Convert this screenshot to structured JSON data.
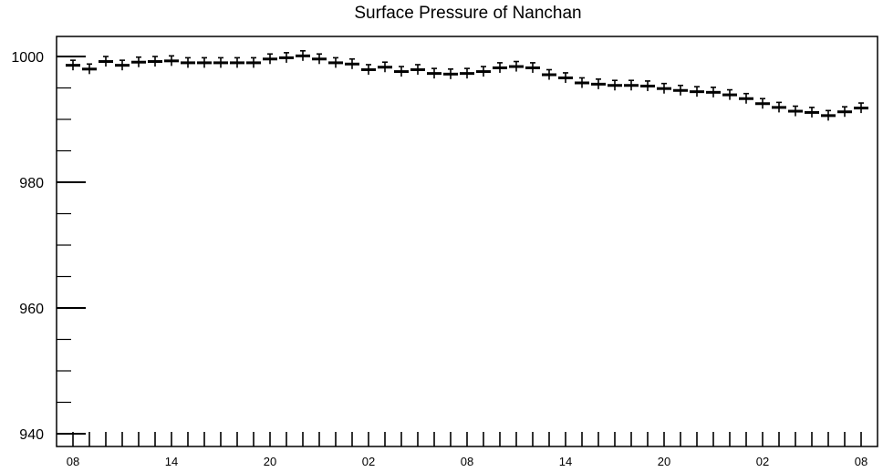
{
  "chart_data": {
    "type": "scatter",
    "title": "Surface Pressure of Nanchan",
    "xlabel": "",
    "ylabel": "",
    "ylim": [
      940,
      1002
    ],
    "yticks_major": [
      940,
      960,
      980,
      1000
    ],
    "yticks_minor_step": 5,
    "x_tick_labels": [
      "08",
      "14",
      "20",
      "02",
      "08",
      "14",
      "20",
      "02",
      "08"
    ],
    "x_tick_label_every": 6,
    "marker": "box with error bars",
    "grid": false,
    "series": [
      {
        "values": [
          998.6,
          998.0,
          999.2,
          998.6,
          999.1,
          999.2,
          999.3,
          999.0,
          999.0,
          999.0,
          999.0,
          999.0,
          999.6,
          999.8,
          1000.1,
          999.6,
          999.0,
          998.8,
          997.9,
          998.3,
          997.6,
          997.9,
          997.3,
          997.2,
          997.3,
          997.6,
          998.2,
          998.4,
          998.2,
          997.1,
          996.6,
          995.8,
          995.6,
          995.4,
          995.4,
          995.3,
          994.9,
          994.6,
          994.4,
          994.3,
          993.9,
          993.3,
          992.5,
          991.9,
          991.3,
          991.1,
          990.6,
          991.2,
          991.8
        ],
        "error": 0.8
      }
    ]
  }
}
